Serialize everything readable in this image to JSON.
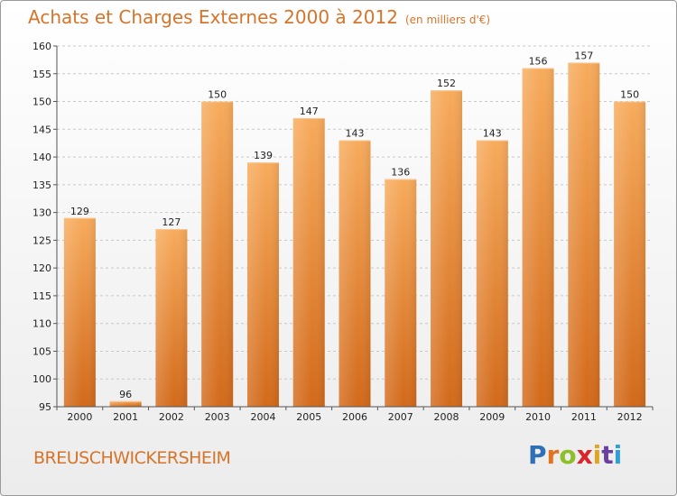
{
  "header": {
    "title": "Achats et Charges Externes 2000 à 2012",
    "unit": "(en milliers d'€)"
  },
  "footer": {
    "place": "BREUSCHWICKERSHEIM",
    "logo_letters": [
      "P",
      "r",
      "o",
      "x",
      "i",
      "t",
      "i"
    ],
    "logo_colors": [
      "#2f6fb5",
      "#e2731f",
      "#8cbf2a",
      "#d9262a",
      "#e2a51f",
      "#6b3fa0",
      "#2f9fd6"
    ]
  },
  "colors": {
    "bar": "#ee8a35",
    "bar_light": "#f7ab5c",
    "bar_dark": "#d2691a",
    "accent": "#d6742a"
  },
  "chart_data": {
    "type": "bar",
    "title": "Achats et Charges Externes 2000 à 2012",
    "subtitle": "(en milliers d'€)",
    "xlabel": "",
    "ylabel": "",
    "categories": [
      "2000",
      "2001",
      "2002",
      "2003",
      "2004",
      "2005",
      "2006",
      "2007",
      "2008",
      "2009",
      "2010",
      "2011",
      "2012"
    ],
    "values": [
      129,
      96,
      127,
      150,
      139,
      147,
      143,
      136,
      152,
      143,
      156,
      157,
      150
    ],
    "ylim": [
      95,
      160
    ],
    "yticks": [
      95,
      100,
      105,
      110,
      115,
      120,
      125,
      130,
      135,
      140,
      145,
      150,
      155,
      160
    ],
    "grid": true,
    "legend": "none"
  }
}
